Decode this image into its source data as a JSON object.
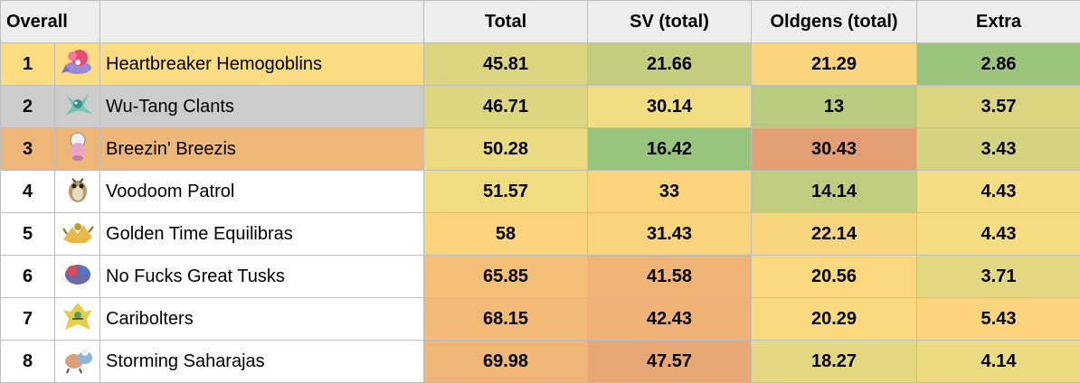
{
  "headers": {
    "overall": "Overall",
    "team": "",
    "total": "Total",
    "sv": "SV (total)",
    "oldgens": "Oldgens (total)",
    "extra": "Extra"
  },
  "rows": [
    {
      "rank": "1",
      "team": "Heartbreaker Hemogoblins",
      "total": "45.81",
      "sv": "21.66",
      "oldgens": "21.29",
      "extra": "2.86",
      "row_color": "#fbdc80",
      "icon": "hatterene-sprite-icon",
      "total_color": "#dcd580",
      "sv_color": "#c2cd7e",
      "oldgens_color": "#fad57d",
      "extra_color": "#9dc47c"
    },
    {
      "rank": "2",
      "team": "Wu-Tang Clants",
      "total": "46.71",
      "sv": "30.14",
      "oldgens": "13",
      "extra": "3.57",
      "row_color": "#cccccc",
      "icon": "tangrowth-sprite-icon",
      "total_color": "#ddd681",
      "sv_color": "#f3dd82",
      "oldgens_color": "#b9cb7e",
      "extra_color": "#dbd580"
    },
    {
      "rank": "3",
      "team": "Breezin' Breezis",
      "total": "50.28",
      "sv": "16.42",
      "oldgens": "30.43",
      "extra": "3.43",
      "row_color": "#eeb677",
      "icon": "slowbro-sprite-icon",
      "total_color": "#ecda82",
      "sv_color": "#98c47d",
      "oldgens_color": "#e49e74",
      "extra_color": "#d5d380"
    },
    {
      "rank": "4",
      "team": "Voodoom Patrol",
      "total": "51.57",
      "sv": "33",
      "oldgens": "14.14",
      "extra": "4.43",
      "row_color": "#ffffff",
      "icon": "hoothoot-sprite-icon",
      "total_color": "#f2dc82",
      "sv_color": "#fbd47d",
      "oldgens_color": "#c0cc7e",
      "extra_color": "#f4dd82"
    },
    {
      "rank": "5",
      "team": "Golden Time Equilibras",
      "total": "58",
      "sv": "31.43",
      "oldgens": "22.14",
      "extra": "4.43",
      "row_color": "#ffffff",
      "icon": "alakazam-sprite-icon",
      "total_color": "#fbd47d",
      "sv_color": "#fad37d",
      "oldgens_color": "#f9d57d",
      "extra_color": "#f4dd82"
    },
    {
      "rank": "6",
      "team": "No Fucks Great Tusks",
      "total": "65.85",
      "sv": "41.58",
      "oldgens": "20.56",
      "extra": "3.71",
      "row_color": "#ffffff",
      "icon": "great-tusk-sprite-icon",
      "total_color": "#f4bf78",
      "sv_color": "#efb476",
      "oldgens_color": "#fbd87e",
      "extra_color": "#e3d781"
    },
    {
      "rank": "7",
      "team": "Caribolters",
      "total": "68.15",
      "sv": "42.43",
      "oldgens": "20.29",
      "extra": "5.43",
      "row_color": "#ffffff",
      "icon": "zeraora-sprite-icon",
      "total_color": "#f2b977",
      "sv_color": "#eeb276",
      "oldgens_color": "#fbd97e",
      "extra_color": "#fbd47d"
    },
    {
      "rank": "8",
      "team": "Storming Saharajas",
      "total": "69.98",
      "sv": "47.57",
      "oldgens": "18.27",
      "extra": "4.14",
      "row_color": "#ffffff",
      "icon": "tyrantrum-sprite-icon",
      "total_color": "#f0b677",
      "sv_color": "#e8a875",
      "oldgens_color": "#e3d781",
      "extra_color": "#eddb82"
    }
  ]
}
